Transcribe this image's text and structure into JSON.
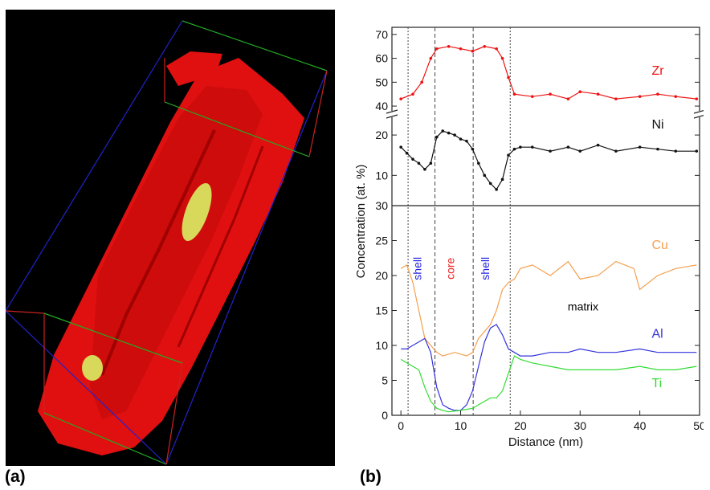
{
  "panel_labels": {
    "a": "(a)",
    "b": "(b)"
  },
  "chart_data": {
    "type": "line",
    "xlabel": "Distance (nm)",
    "ylabel": "Concentration (at. %)",
    "xlim": [
      -1.5,
      50
    ],
    "x_ticks": [
      0,
      10,
      20,
      30,
      40,
      50
    ],
    "grid": false,
    "panels": [
      {
        "name": "top",
        "ylim": [
          38,
          73
        ],
        "y_ticks": [
          40,
          50,
          60,
          70
        ],
        "series": [
          "Zr"
        ]
      },
      {
        "name": "middle",
        "ylim": [
          2.5,
          24
        ],
        "y_ticks": [
          10,
          20
        ],
        "series": [
          "Ni"
        ]
      },
      {
        "name": "bottom",
        "ylim": [
          0,
          30
        ],
        "y_ticks": [
          0,
          5,
          10,
          15,
          20,
          25,
          30
        ],
        "series": [
          "Cu",
          "Al",
          "Ti"
        ]
      }
    ],
    "vlines": {
      "dotted": [
        1.2,
        18.3
      ],
      "dashed": [
        5.7,
        12.1
      ]
    },
    "region_labels": [
      {
        "text": "shell",
        "color": "#2222dd",
        "x": 3.4
      },
      {
        "text": "core",
        "color": "#ee2222",
        "x": 8.9
      },
      {
        "text": "shell",
        "color": "#2222dd",
        "x": 14.8
      },
      {
        "text": "matrix",
        "color": "#000000",
        "x": 30.5
      }
    ],
    "series": [
      {
        "name": "Zr",
        "color": "#ee1111",
        "panel": "top",
        "marker": true,
        "x": [
          0,
          2,
          3.5,
          5,
          6,
          8,
          10,
          12,
          14,
          16,
          17,
          18,
          19,
          22,
          25,
          28,
          30,
          33,
          36,
          40,
          43,
          46,
          49.5
        ],
        "y": [
          43,
          45,
          50,
          60,
          64,
          65,
          64,
          63,
          65,
          64,
          60,
          52,
          45,
          44,
          45,
          43,
          46,
          45,
          43,
          44,
          45,
          44,
          43
        ]
      },
      {
        "name": "Ni",
        "color": "#111111",
        "panel": "middle",
        "marker": true,
        "x": [
          0,
          1,
          2,
          3,
          4,
          5,
          6,
          7,
          8,
          9,
          10,
          11,
          12,
          13,
          14,
          15,
          16,
          17,
          18,
          19,
          20,
          22,
          25,
          28,
          30,
          33,
          36,
          40,
          43,
          46,
          49.5
        ],
        "y": [
          17,
          15.5,
          14,
          13,
          11.5,
          13,
          19.5,
          21,
          20.5,
          20,
          19,
          18.5,
          16.5,
          13,
          10,
          8,
          6.5,
          9,
          15,
          16.5,
          17,
          17,
          16,
          17,
          16,
          17.5,
          16,
          17,
          16.5,
          16,
          16
        ]
      },
      {
        "name": "Cu",
        "color": "#f5a050",
        "panel": "bottom",
        "marker": false,
        "x": [
          0,
          1,
          2,
          3,
          4,
          5,
          6,
          7,
          9,
          11,
          12,
          13,
          14,
          15,
          16,
          17,
          18,
          19,
          20,
          22,
          25,
          28,
          30,
          33,
          36,
          39,
          40,
          43,
          46,
          49.5
        ],
        "y": [
          21,
          21.5,
          19,
          15,
          11,
          10,
          9,
          8.5,
          9,
          8.5,
          9,
          11,
          12,
          13,
          15,
          18,
          19,
          19.5,
          21,
          21.5,
          20,
          22,
          19.5,
          20,
          22,
          21,
          18,
          20,
          21,
          21.5
        ]
      },
      {
        "name": "Al",
        "color": "#3333dd",
        "panel": "bottom",
        "marker": false,
        "x": [
          0,
          1,
          2,
          3,
          4,
          5,
          6,
          7,
          8,
          9,
          10,
          11,
          12,
          13,
          14,
          15,
          16,
          17,
          18,
          19,
          20,
          22,
          25,
          28,
          30,
          33,
          36,
          40,
          43,
          46,
          49.5
        ],
        "y": [
          9.5,
          9.5,
          10,
          10.5,
          11,
          9,
          4,
          1.5,
          1,
          0.7,
          0.7,
          1.5,
          3.5,
          7,
          10.5,
          12.5,
          13,
          11.5,
          9.5,
          9,
          8.5,
          8.5,
          9,
          9,
          9.5,
          9,
          9,
          9.5,
          9,
          9,
          9
        ]
      },
      {
        "name": "Ti",
        "color": "#33dd33",
        "panel": "bottom",
        "marker": false,
        "x": [
          0,
          1,
          2,
          3,
          4,
          5,
          6,
          7,
          8,
          10,
          12,
          13,
          14,
          15,
          16,
          17,
          18,
          19,
          20,
          22,
          25,
          28,
          30,
          33,
          36,
          40,
          43,
          46,
          49.5
        ],
        "y": [
          8,
          7.5,
          7,
          6.5,
          4,
          2,
          1,
          0.7,
          0.5,
          0.7,
          1,
          1.5,
          2,
          2.5,
          2.5,
          3.5,
          6,
          8.5,
          8,
          7.5,
          7,
          6.5,
          6.5,
          6.5,
          6.5,
          7,
          6.5,
          6.5,
          7
        ]
      }
    ]
  }
}
